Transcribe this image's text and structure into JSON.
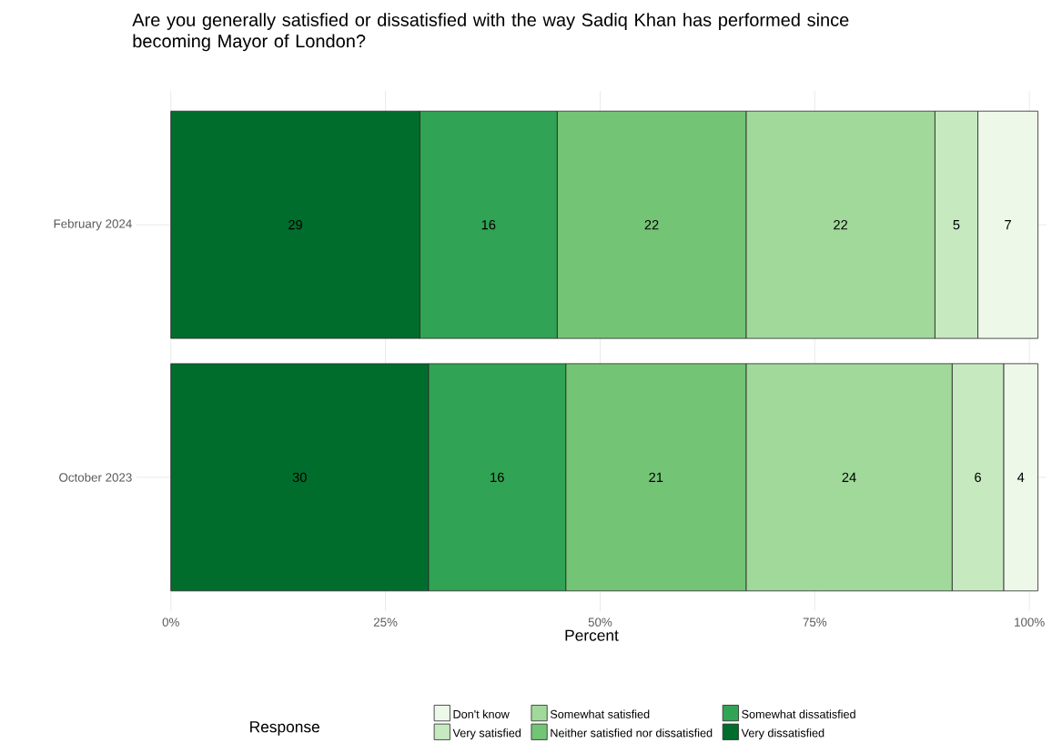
{
  "chart_data": {
    "type": "bar",
    "orientation": "horizontal",
    "stacked": true,
    "title": "Are you generally satisfied or dissatisfied with the way Sadiq Khan has performed since becoming Mayor of London?",
    "xlabel": "Percent",
    "legend_title": "Response",
    "categories": [
      "February 2024",
      "October 2023"
    ],
    "series": [
      {
        "name": "Very dissatisfied",
        "color": "#006d2c",
        "values": [
          29,
          30
        ]
      },
      {
        "name": "Somewhat dissatisfied",
        "color": "#31a354",
        "values": [
          16,
          16
        ]
      },
      {
        "name": "Neither satisfied nor dissatisfied",
        "color": "#74c476",
        "values": [
          22,
          21
        ]
      },
      {
        "name": "Somewhat satisfied",
        "color": "#a1d99b",
        "values": [
          22,
          24
        ]
      },
      {
        "name": "Very satisfied",
        "color": "#c7e9c0",
        "values": [
          5,
          6
        ]
      },
      {
        "name": "Don't know",
        "color": "#edf8e9",
        "values": [
          7,
          4
        ]
      }
    ],
    "xlim": [
      -4,
      102
    ],
    "xticks": [
      {
        "value": 0,
        "label": "0%"
      },
      {
        "value": 25,
        "label": "25%"
      },
      {
        "value": 50,
        "label": "50%"
      },
      {
        "value": 75,
        "label": "75%"
      },
      {
        "value": 100,
        "label": "100%"
      }
    ],
    "grid": true,
    "legend": "bottom",
    "data_labels": true
  }
}
